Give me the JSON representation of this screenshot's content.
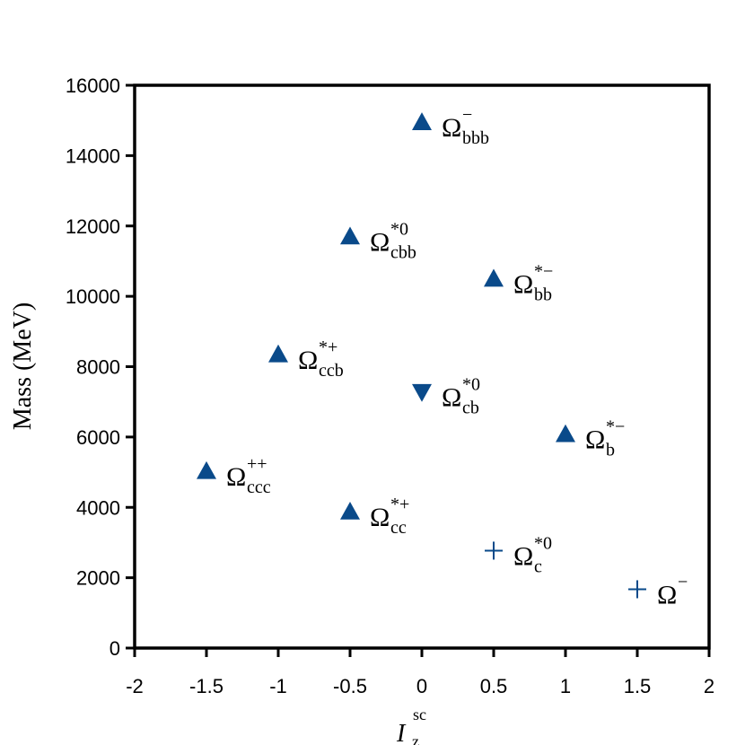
{
  "chart_data": {
    "type": "scatter",
    "ylabel": "Mass (MeV)",
    "xlabel": {
      "main": "I",
      "sub": "z",
      "sup": "sc"
    },
    "xlim": [
      -2,
      2
    ],
    "ylim": [
      0,
      16000
    ],
    "x_ticks": [
      "-2",
      "-1.5",
      "-1",
      "-0.5",
      "0",
      "0.5",
      "1",
      "1.5",
      "2"
    ],
    "y_ticks": [
      "0",
      "2000",
      "4000",
      "6000",
      "8000",
      "10000",
      "12000",
      "14000",
      "16000"
    ],
    "marker_color": "#0a4a8a",
    "points": [
      {
        "x": 0,
        "y": 14950,
        "marker": "triangle-up",
        "label": {
          "base": "Ω",
          "sub": "bbb",
          "sup": "−"
        }
      },
      {
        "x": -0.5,
        "y": 11700,
        "marker": "triangle-up",
        "label": {
          "base": "Ω",
          "sub": "cbb",
          "sup": "*0"
        }
      },
      {
        "x": 0.5,
        "y": 10500,
        "marker": "triangle-up",
        "label": {
          "base": "Ω",
          "sub": "bb",
          "sup": "*−"
        }
      },
      {
        "x": -1,
        "y": 8350,
        "marker": "triangle-up",
        "label": {
          "base": "Ω",
          "sub": "ccb",
          "sup": "*+"
        }
      },
      {
        "x": 0,
        "y": 7280,
        "marker": "triangle-down",
        "label": {
          "base": "Ω",
          "sub": "cb",
          "sup": "*0"
        }
      },
      {
        "x": 1,
        "y": 6080,
        "marker": "triangle-up",
        "label": {
          "base": "Ω",
          "sub": "b",
          "sup": "*−"
        }
      },
      {
        "x": -1.5,
        "y": 5030,
        "marker": "triangle-up",
        "label": {
          "base": "Ω",
          "sub": "ccc",
          "sup": "++"
        }
      },
      {
        "x": -0.5,
        "y": 3880,
        "marker": "triangle-up",
        "label": {
          "base": "Ω",
          "sub": "cc",
          "sup": "*+"
        }
      },
      {
        "x": 0.5,
        "y": 2770,
        "marker": "plus",
        "label": {
          "base": "Ω",
          "sub": "c",
          "sup": "*0"
        }
      },
      {
        "x": 1.5,
        "y": 1672,
        "marker": "plus",
        "label": {
          "base": "Ω",
          "sub": "",
          "sup": "−"
        }
      }
    ]
  }
}
